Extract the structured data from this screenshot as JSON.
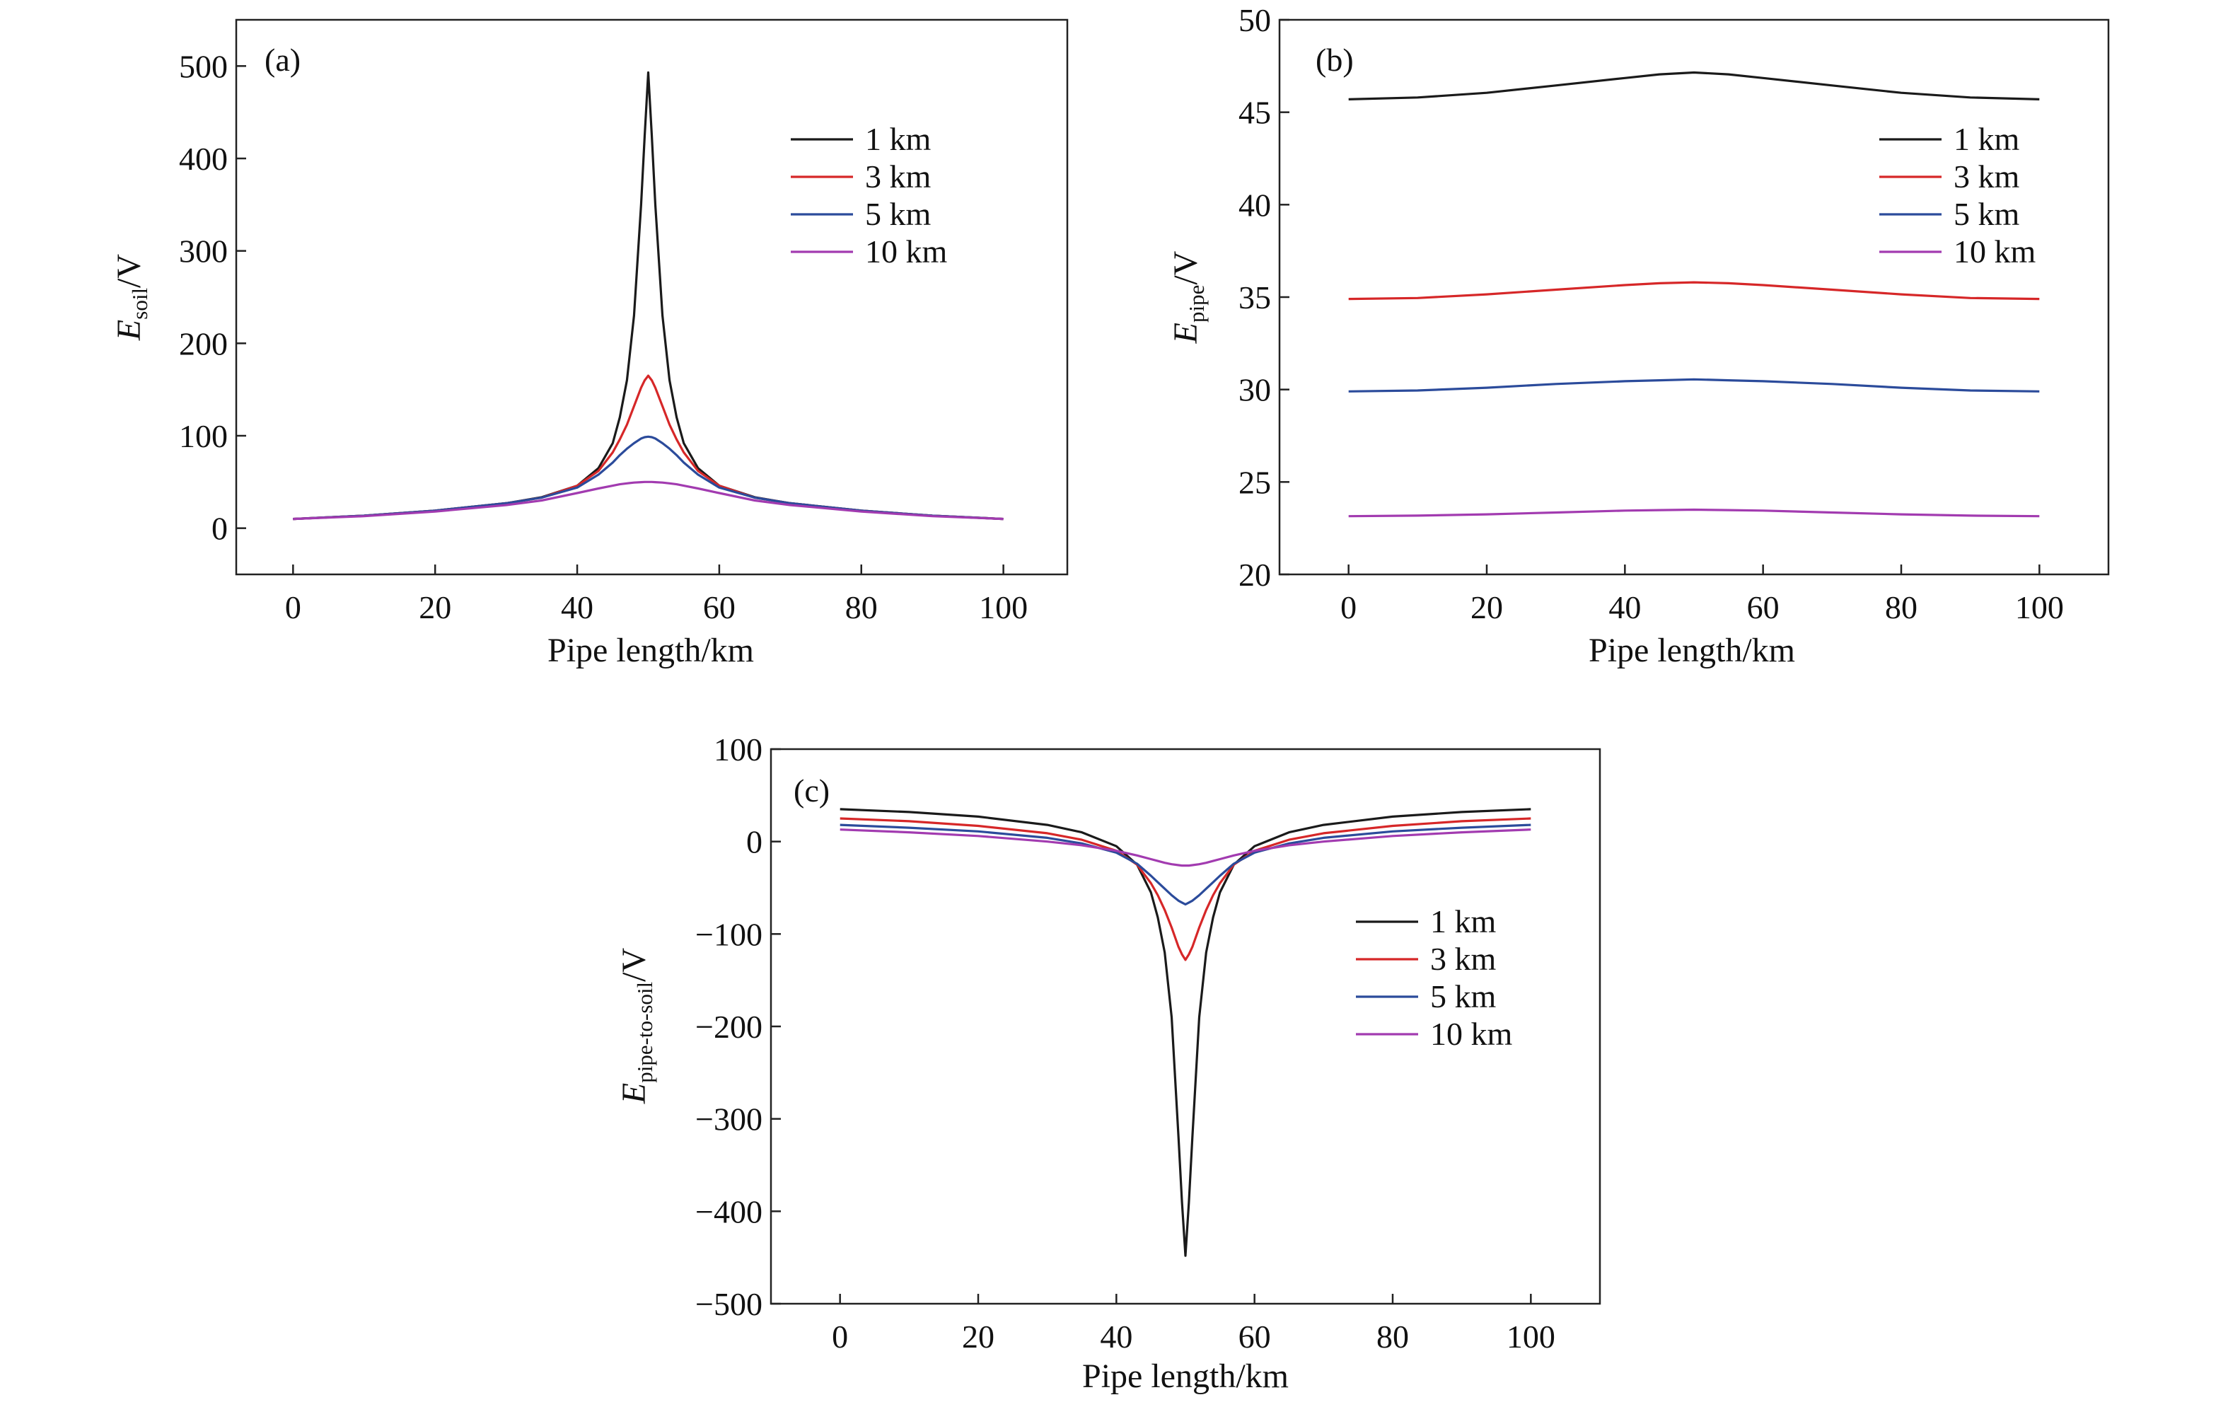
{
  "chart_data": [
    {
      "type": "line",
      "panel_label": "(a)",
      "xlabel": "Pipe length/km",
      "ylabel_main": "E",
      "ylabel_sub": "soil",
      "ylabel_unit": "/V",
      "xlim": [
        -8,
        109
      ],
      "ylim": [
        -50,
        550
      ],
      "xticks": [
        0,
        20,
        40,
        60,
        80,
        100
      ],
      "yticks": [
        0,
        100,
        200,
        300,
        400,
        500
      ],
      "x": [
        0,
        10,
        20,
        30,
        35,
        40,
        43,
        45,
        46,
        47,
        48,
        49,
        49.5,
        50,
        50.5,
        51,
        52,
        53,
        54,
        55,
        57,
        60,
        65,
        70,
        80,
        90,
        100
      ],
      "series": [
        {
          "name": "1 km",
          "color": "#1a1a1a",
          "values": [
            10,
            13.5,
            19,
            27,
            33.5,
            46,
            65,
            92,
            120,
            160,
            230,
            350,
            425,
            493,
            425,
            350,
            230,
            160,
            120,
            92,
            65,
            46,
            33.5,
            27,
            19,
            13.5,
            10
          ]
        },
        {
          "name": "3 km",
          "color": "#d62728",
          "values": [
            10,
            13.5,
            19,
            27,
            33,
            46,
            62,
            82,
            96,
            112,
            132,
            152,
            160,
            165,
            160,
            152,
            132,
            112,
            96,
            82,
            62,
            46,
            33,
            27,
            19,
            13.5,
            10
          ]
        },
        {
          "name": "5 km",
          "color": "#2b4b9b",
          "values": [
            10,
            13.5,
            19,
            27,
            33,
            44,
            58,
            71,
            79,
            86,
            92,
            97,
            98.5,
            99,
            98.5,
            97,
            92,
            86,
            79,
            71,
            58,
            44,
            33,
            27,
            19,
            13.5,
            10
          ]
        },
        {
          "name": "10 km",
          "color": "#a23bb0",
          "values": [
            10,
            13,
            18,
            25,
            30,
            38,
            43,
            46,
            47.5,
            48.5,
            49.3,
            49.8,
            50,
            50,
            50,
            49.8,
            49.3,
            48.5,
            47.5,
            46,
            43,
            38,
            30,
            25,
            18,
            13,
            10
          ]
        }
      ],
      "legend_position": "top-right"
    },
    {
      "type": "line",
      "panel_label": "(b)",
      "xlabel": "Pipe length/km",
      "ylabel_main": "E",
      "ylabel_sub": "pipe",
      "ylabel_unit": "/V",
      "xlim": [
        -10,
        110
      ],
      "ylim": [
        20,
        50
      ],
      "xticks": [
        0,
        20,
        40,
        60,
        80,
        100
      ],
      "yticks": [
        20,
        25,
        30,
        35,
        40,
        45,
        50
      ],
      "x": [
        0,
        10,
        20,
        30,
        40,
        45,
        50,
        55,
        60,
        70,
        80,
        90,
        100
      ],
      "series": [
        {
          "name": "1 km",
          "color": "#1a1a1a",
          "values": [
            45.7,
            45.8,
            46.05,
            46.45,
            46.85,
            47.05,
            47.15,
            47.05,
            46.85,
            46.45,
            46.05,
            45.8,
            45.7
          ]
        },
        {
          "name": "3 km",
          "color": "#d62728",
          "values": [
            34.9,
            34.95,
            35.15,
            35.4,
            35.65,
            35.75,
            35.8,
            35.75,
            35.65,
            35.4,
            35.15,
            34.95,
            34.9
          ]
        },
        {
          "name": "5 km",
          "color": "#2b4b9b",
          "values": [
            29.9,
            29.95,
            30.1,
            30.3,
            30.45,
            30.5,
            30.55,
            30.5,
            30.45,
            30.3,
            30.1,
            29.95,
            29.9
          ]
        },
        {
          "name": "10 km",
          "color": "#a23bb0",
          "values": [
            23.15,
            23.18,
            23.25,
            23.35,
            23.45,
            23.48,
            23.5,
            23.48,
            23.45,
            23.35,
            23.25,
            23.18,
            23.15
          ]
        }
      ],
      "legend_position": "top-right"
    },
    {
      "type": "line",
      "panel_label": "(c)",
      "xlabel": "Pipe length/km",
      "ylabel_main": "E",
      "ylabel_sub": "pipe-to-soil",
      "ylabel_unit": "/V",
      "xlim": [
        -10,
        110
      ],
      "ylim": [
        -500,
        100
      ],
      "xticks": [
        0,
        20,
        40,
        60,
        80,
        100
      ],
      "yticks": [
        -500,
        -400,
        -300,
        -200,
        -100,
        0,
        100
      ],
      "x": [
        0,
        10,
        20,
        30,
        35,
        40,
        43,
        45,
        46,
        47,
        48,
        49,
        49.5,
        50,
        50.5,
        51,
        52,
        53,
        54,
        55,
        57,
        60,
        65,
        70,
        80,
        90,
        100
      ],
      "series": [
        {
          "name": "1 km",
          "color": "#1a1a1a",
          "values": [
            35,
            32,
            27,
            18,
            10,
            -5,
            -25,
            -55,
            -82,
            -120,
            -190,
            -320,
            -390,
            -448,
            -390,
            -320,
            -190,
            -120,
            -82,
            -55,
            -25,
            -5,
            10,
            18,
            27,
            32,
            35
          ]
        },
        {
          "name": "3 km",
          "color": "#d62728",
          "values": [
            25,
            22,
            17,
            9,
            2,
            -10,
            -25,
            -45,
            -58,
            -74,
            -93,
            -114,
            -122,
            -128,
            -122,
            -114,
            -93,
            -74,
            -58,
            -45,
            -25,
            -10,
            2,
            9,
            17,
            22,
            25
          ]
        },
        {
          "name": "5 km",
          "color": "#2b4b9b",
          "values": [
            18,
            15,
            11,
            4,
            -2,
            -12,
            -24,
            -37,
            -44,
            -51,
            -58,
            -64,
            -66,
            -68,
            -66,
            -64,
            -58,
            -51,
            -44,
            -37,
            -24,
            -12,
            -2,
            4,
            11,
            15,
            18
          ]
        },
        {
          "name": "10 km",
          "color": "#a23bb0",
          "values": [
            13,
            10,
            6,
            0,
            -4,
            -10,
            -15,
            -19,
            -21,
            -23,
            -24.5,
            -25.5,
            -26,
            -26,
            -26,
            -25.5,
            -24.5,
            -23,
            -21,
            -19,
            -15,
            -10,
            -4,
            0,
            6,
            10,
            13
          ]
        }
      ],
      "legend_position": "right"
    }
  ]
}
